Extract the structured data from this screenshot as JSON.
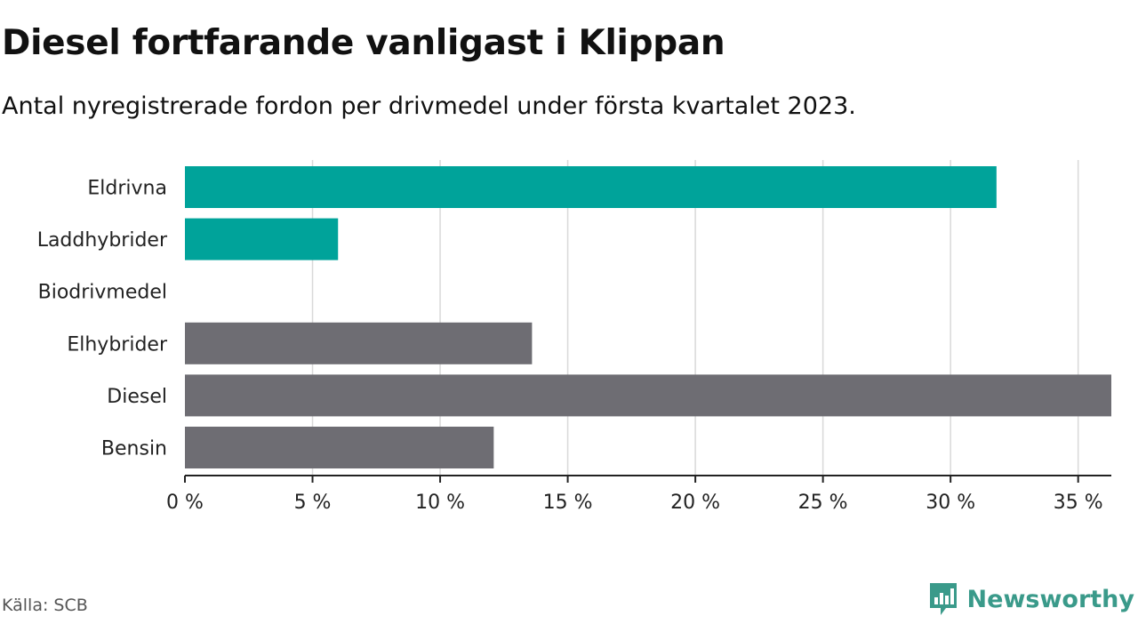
{
  "title": "Diesel fortfarande vanligast i Klippan",
  "subtitle": "Antal nyregistrerade fordon per drivmedel under första kvartalet 2023.",
  "source": "Källa: SCB",
  "brand": "Newsworthy",
  "colors": {
    "accent": "#00a39a",
    "neutral": "#6e6d73",
    "grid": "#d9d9d9",
    "axis": "#222222",
    "brand": "#3a9a8a"
  },
  "chart_data": {
    "type": "bar",
    "orientation": "horizontal",
    "categories": [
      "Eldrivna",
      "Laddhybrider",
      "Biodrivmedel",
      "Elhybrider",
      "Diesel",
      "Bensin"
    ],
    "values": [
      31.8,
      6.0,
      0,
      13.6,
      36.3,
      12.1
    ],
    "bar_colors": [
      "#00a39a",
      "#00a39a",
      "#00a39a",
      "#6e6d73",
      "#6e6d73",
      "#6e6d73"
    ],
    "xlim": [
      0,
      36.3
    ],
    "xticks": [
      0,
      5,
      10,
      15,
      20,
      25,
      30,
      35
    ],
    "tick_labels": [
      "0 %",
      "5 %",
      "10 %",
      "15 %",
      "20 %",
      "25 %",
      "30 %",
      "35 %"
    ],
    "grid": true,
    "xlabel": "",
    "ylabel": ""
  }
}
